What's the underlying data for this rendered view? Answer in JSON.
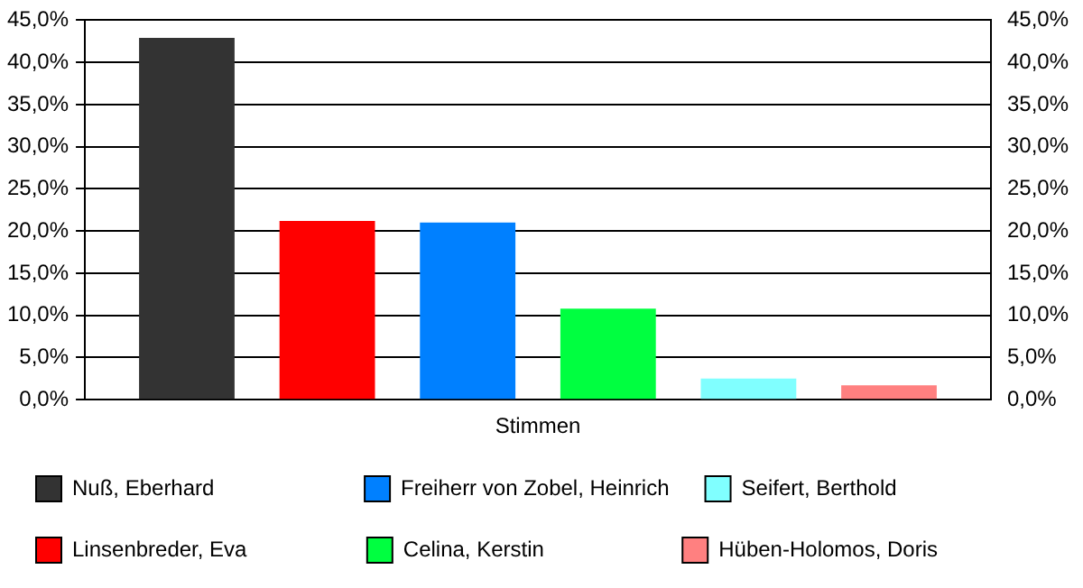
{
  "chart_data": {
    "type": "bar",
    "categories": [
      "Stimmen"
    ],
    "series": [
      {
        "name": "Nuß, Eberhard",
        "color": "#333333",
        "values": [
          42.9
        ]
      },
      {
        "name": "Linsenbreder, Eva",
        "color": "#ff0000",
        "values": [
          21.2
        ]
      },
      {
        "name": "Freiherr von Zobel, Heinrich",
        "color": "#0080ff",
        "values": [
          21.0
        ]
      },
      {
        "name": "Celina, Kerstin",
        "color": "#00ff40",
        "values": [
          10.8
        ]
      },
      {
        "name": "Seifert, Berthold",
        "color": "#80ffff",
        "values": [
          2.5
        ]
      },
      {
        "name": "Hüben-Holomos, Doris",
        "color": "#ff8080",
        "values": [
          1.7
        ]
      }
    ],
    "ylim": [
      0,
      45
    ],
    "yticks": [
      {
        "value": 0,
        "label": "0,0%"
      },
      {
        "value": 5,
        "label": "5,0%"
      },
      {
        "value": 10,
        "label": "10,0%"
      },
      {
        "value": 15,
        "label": "15,0%"
      },
      {
        "value": 20,
        "label": "20,0%"
      },
      {
        "value": 25,
        "label": "25,0%"
      },
      {
        "value": 30,
        "label": "30,0%"
      },
      {
        "value": 35,
        "label": "35,0%"
      },
      {
        "value": 40,
        "label": "40,0%"
      },
      {
        "value": 45,
        "label": "45,0%"
      }
    ],
    "grid": "y",
    "legend": "bottom"
  }
}
